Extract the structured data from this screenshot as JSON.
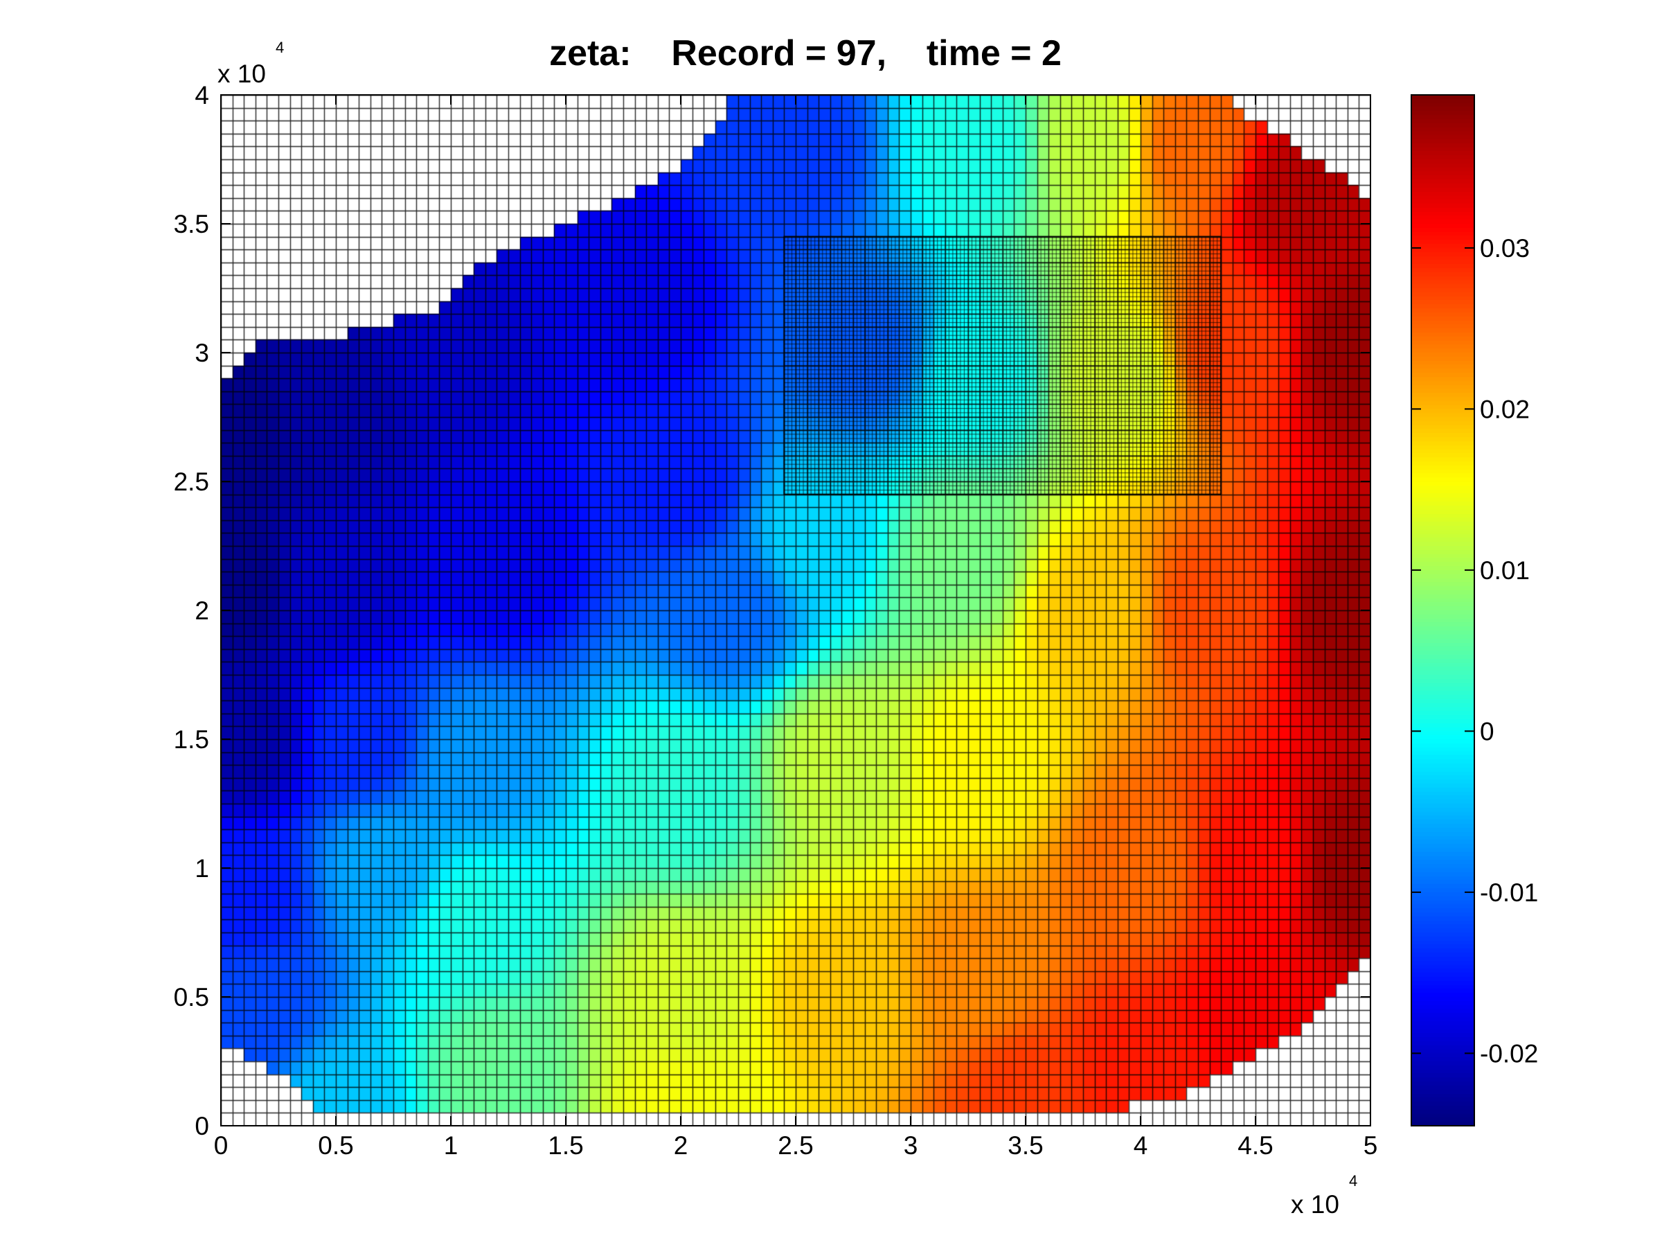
{
  "chart_data": {
    "type": "heatmap",
    "title": "zeta:    Record = 97,    time = 2",
    "xlabel": "",
    "ylabel": "",
    "x_ticks": [
      "0",
      "0.5",
      "1",
      "1.5",
      "2",
      "2.5",
      "3",
      "3.5",
      "4",
      "4.5",
      "5"
    ],
    "y_ticks": [
      "0",
      "0.5",
      "1",
      "1.5",
      "2",
      "2.5",
      "3",
      "3.5",
      "4"
    ],
    "x_tick_values": [
      0,
      5000,
      10000,
      15000,
      20000,
      25000,
      30000,
      35000,
      40000,
      45000,
      50000
    ],
    "y_tick_values": [
      0,
      5000,
      10000,
      15000,
      20000,
      25000,
      30000,
      35000,
      40000
    ],
    "x_multiplier": "x 10",
    "y_multiplier": "x 10",
    "multiplier_exponent": "4",
    "xlim": [
      0,
      50000
    ],
    "ylim": [
      0,
      40000
    ],
    "grid_cell_size": 500,
    "colorbar": {
      "colormap": "jet",
      "range": [
        -0.0245,
        0.0395
      ],
      "tick_values": [
        -0.02,
        -0.01,
        0,
        0.01,
        0.02,
        0.03
      ],
      "tick_labels": [
        "-0.02",
        "-0.01",
        "0",
        "0.01",
        "0.02",
        "0.03"
      ]
    },
    "field_anchors": [
      {
        "x": 500,
        "y": 27000,
        "z": -0.024
      },
      {
        "x": 500,
        "y": 21000,
        "z": -0.024
      },
      {
        "x": 1000,
        "y": 15000,
        "z": -0.022
      },
      {
        "x": 1000,
        "y": 9000,
        "z": -0.015
      },
      {
        "x": 1500,
        "y": 4500,
        "z": -0.012
      },
      {
        "x": 5000,
        "y": 500,
        "z": -0.004
      },
      {
        "x": 5000,
        "y": 28000,
        "z": -0.022
      },
      {
        "x": 5000,
        "y": 21000,
        "z": -0.02
      },
      {
        "x": 6000,
        "y": 15000,
        "z": -0.014
      },
      {
        "x": 7000,
        "y": 10000,
        "z": -0.006
      },
      {
        "x": 10000,
        "y": 30000,
        "z": -0.02
      },
      {
        "x": 12000,
        "y": 22000,
        "z": -0.018
      },
      {
        "x": 11000,
        "y": 14000,
        "z": -0.007
      },
      {
        "x": 11000,
        "y": 8000,
        "z": 0.001
      },
      {
        "x": 12000,
        "y": 2000,
        "z": 0.006
      },
      {
        "x": 18000,
        "y": 32000,
        "z": -0.018
      },
      {
        "x": 20000,
        "y": 25000,
        "z": -0.015
      },
      {
        "x": 22000,
        "y": 20000,
        "z": -0.01
      },
      {
        "x": 20000,
        "y": 13000,
        "z": 0.002
      },
      {
        "x": 20000,
        "y": 5000,
        "z": 0.013
      },
      {
        "x": 20000,
        "y": 500,
        "z": 0.015
      },
      {
        "x": 25000,
        "y": 38000,
        "z": -0.013
      },
      {
        "x": 28000,
        "y": 30000,
        "z": -0.011
      },
      {
        "x": 26000,
        "y": 23000,
        "z": -0.003
      },
      {
        "x": 27000,
        "y": 14000,
        "z": 0.012
      },
      {
        "x": 27000,
        "y": 5000,
        "z": 0.019
      },
      {
        "x": 33000,
        "y": 38000,
        "z": 0.001
      },
      {
        "x": 33000,
        "y": 29000,
        "z": 0.0
      },
      {
        "x": 32000,
        "y": 22000,
        "z": 0.007
      },
      {
        "x": 33000,
        "y": 14000,
        "z": 0.016
      },
      {
        "x": 33000,
        "y": 6000,
        "z": 0.023
      },
      {
        "x": 35000,
        "y": 1000,
        "z": 0.028
      },
      {
        "x": 38000,
        "y": 38000,
        "z": 0.012
      },
      {
        "x": 39000,
        "y": 29000,
        "z": 0.013
      },
      {
        "x": 38000,
        "y": 20000,
        "z": 0.019
      },
      {
        "x": 40000,
        "y": 10000,
        "z": 0.025
      },
      {
        "x": 40000,
        "y": 2000,
        "z": 0.03
      },
      {
        "x": 42000,
        "y": 38000,
        "z": 0.025
      },
      {
        "x": 44000,
        "y": 30000,
        "z": 0.028
      },
      {
        "x": 43000,
        "y": 20000,
        "z": 0.027
      },
      {
        "x": 45000,
        "y": 10000,
        "z": 0.031
      },
      {
        "x": 45000,
        "y": 4000,
        "z": 0.032
      },
      {
        "x": 47000,
        "y": 36000,
        "z": 0.036
      },
      {
        "x": 49500,
        "y": 30000,
        "z": 0.038
      },
      {
        "x": 49500,
        "y": 20000,
        "z": 0.038
      },
      {
        "x": 49500,
        "y": 10000,
        "z": 0.038
      }
    ],
    "domain_boundary": {
      "top_edge": [
        {
          "x": 0,
          "y": 28500
        },
        {
          "x": 500,
          "y": 29000
        },
        {
          "x": 1000,
          "y": 29500
        },
        {
          "x": 1500,
          "y": 30000
        },
        {
          "x": 2000,
          "y": 30500
        },
        {
          "x": 5500,
          "y": 30500
        },
        {
          "x": 6000,
          "y": 31000
        },
        {
          "x": 9500,
          "y": 31500
        },
        {
          "x": 10000,
          "y": 32000
        },
        {
          "x": 10500,
          "y": 32500
        },
        {
          "x": 11000,
          "y": 33000
        },
        {
          "x": 11500,
          "y": 33500
        },
        {
          "x": 12500,
          "y": 34000
        },
        {
          "x": 14000,
          "y": 34500
        },
        {
          "x": 15000,
          "y": 35000
        },
        {
          "x": 16500,
          "y": 35500
        },
        {
          "x": 17500,
          "y": 36000
        },
        {
          "x": 18500,
          "y": 36500
        },
        {
          "x": 19500,
          "y": 37000
        },
        {
          "x": 20500,
          "y": 37500
        },
        {
          "x": 21000,
          "y": 38000
        },
        {
          "x": 21500,
          "y": 38500
        },
        {
          "x": 22000,
          "y": 39500
        },
        {
          "x": 22500,
          "y": 40000
        },
        {
          "x": 43500,
          "y": 40000
        },
        {
          "x": 44000,
          "y": 39500
        },
        {
          "x": 45000,
          "y": 39000
        },
        {
          "x": 46000,
          "y": 38500
        },
        {
          "x": 46500,
          "y": 38000
        },
        {
          "x": 47500,
          "y": 37500
        },
        {
          "x": 48500,
          "y": 37000
        },
        {
          "x": 49000,
          "y": 36500
        },
        {
          "x": 50000,
          "y": 36000
        }
      ],
      "bottom_edge": [
        {
          "x": 0,
          "y": 3500
        },
        {
          "x": 500,
          "y": 3000
        },
        {
          "x": 1500,
          "y": 2500
        },
        {
          "x": 2500,
          "y": 2000
        },
        {
          "x": 3500,
          "y": 1500
        },
        {
          "x": 4500,
          "y": 500
        },
        {
          "x": 39000,
          "y": 500
        },
        {
          "x": 39500,
          "y": 1000
        },
        {
          "x": 41500,
          "y": 1000
        },
        {
          "x": 42500,
          "y": 1500
        },
        {
          "x": 43500,
          "y": 2000
        },
        {
          "x": 44500,
          "y": 2500
        },
        {
          "x": 45500,
          "y": 3000
        },
        {
          "x": 46500,
          "y": 3500
        },
        {
          "x": 47000,
          "y": 4000
        },
        {
          "x": 47500,
          "y": 4500
        },
        {
          "x": 48000,
          "y": 5000
        },
        {
          "x": 48500,
          "y": 5500
        },
        {
          "x": 49000,
          "y": 6000
        },
        {
          "x": 49500,
          "y": 6500
        },
        {
          "x": 50000,
          "y": 7000
        }
      ]
    },
    "refined_region": {
      "x0": 24500,
      "x1": 43500,
      "y0": 24500,
      "y1": 34500,
      "refinement": 3
    }
  }
}
